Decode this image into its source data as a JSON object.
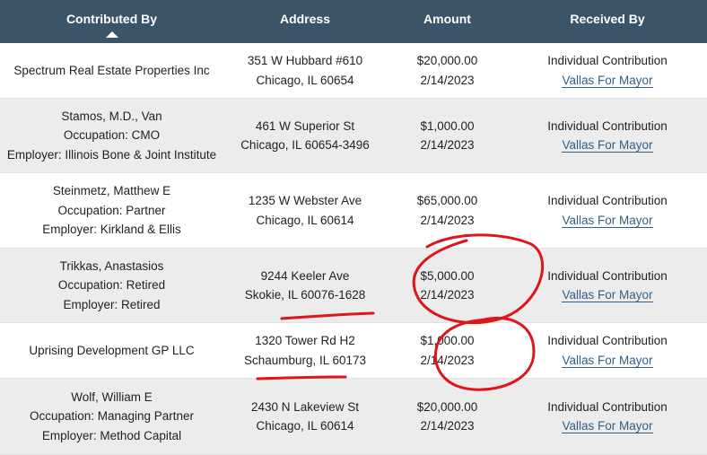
{
  "headers": {
    "contributed_by": "Contributed By",
    "address": "Address",
    "amount": "Amount",
    "received_by": "Received By"
  },
  "rows": [
    {
      "contributor": [
        "Spectrum Real Estate Properties Inc"
      ],
      "address": [
        "351 W Hubbard #610",
        "Chicago, IL 60654"
      ],
      "amount": "$20,000.00",
      "date": "2/14/2023",
      "type": "Individual Contribution",
      "recipient": "Vallas For Mayor"
    },
    {
      "contributor": [
        "Stamos, M.D., Van",
        "Occupation: CMO",
        "Employer: Illinois Bone & Joint Institute"
      ],
      "address": [
        "461 W Superior St",
        "Chicago, IL 60654-3496"
      ],
      "amount": "$1,000.00",
      "date": "2/14/2023",
      "type": "Individual Contribution",
      "recipient": "Vallas For Mayor"
    },
    {
      "contributor": [
        "Steinmetz, Matthew E",
        "Occupation: Partner",
        "Employer: Kirkland & Ellis"
      ],
      "address": [
        "1235 W Webster Ave",
        "Chicago, IL 60614"
      ],
      "amount": "$65,000.00",
      "date": "2/14/2023",
      "type": "Individual Contribution",
      "recipient": "Vallas For Mayor"
    },
    {
      "contributor": [
        "Trikkas, Anastasios",
        "Occupation: Retired",
        "Employer: Retired"
      ],
      "address": [
        "9244 Keeler Ave",
        "Skokie, IL 60076-1628"
      ],
      "amount": "$5,000.00",
      "date": "2/14/2023",
      "type": "Individual Contribution",
      "recipient": "Vallas For Mayor"
    },
    {
      "contributor": [
        "Uprising Development GP LLC"
      ],
      "address": [
        "1320 Tower Rd H2",
        "Schaumburg, IL 60173"
      ],
      "amount": "$1,000.00",
      "date": "2/14/2023",
      "type": "Individual Contribution",
      "recipient": "Vallas For Mayor"
    },
    {
      "contributor": [
        "Wolf, William E",
        "Occupation: Managing Partner",
        "Employer: Method Capital"
      ],
      "address": [
        "2430 N Lakeview St",
        "Chicago, IL 60614"
      ],
      "amount": "$20,000.00",
      "date": "2/14/2023",
      "type": "Individual Contribution",
      "recipient": "Vallas For Mayor"
    }
  ],
  "colors": {
    "header_bg": "#3b5468",
    "alt_row_bg": "#ececec",
    "link": "#2f5f86",
    "annotation": "#e0141b"
  },
  "annotations": [
    "circle",
    "underline",
    "circle",
    "underline"
  ],
  "icons": {
    "sort": "sort-ascending-icon"
  }
}
